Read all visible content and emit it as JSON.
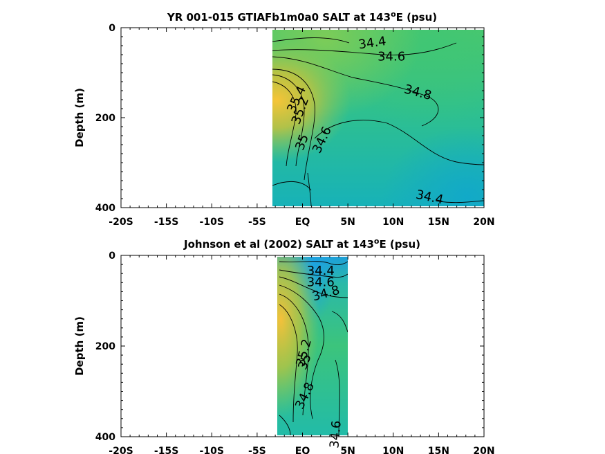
{
  "chart_data": [
    {
      "type": "heatmap",
      "title": {
        "prefix": "YR 001-015 GTIAFb1m0a0 SALT at 143",
        "sup": "o",
        "suffix": "E (psu)"
      },
      "ylabel": "Depth (m)",
      "xlim": [
        -20,
        20
      ],
      "ylim": [
        0,
        400
      ],
      "x_ticks": [
        -20,
        -15,
        -10,
        -5,
        0,
        5,
        10,
        15,
        20
      ],
      "x_tick_labels": [
        "-20S",
        "-15S",
        "-10S",
        "-5S",
        "EQ",
        "5N",
        "10N",
        "15N",
        "20N"
      ],
      "y_ticks": [
        0,
        200,
        400
      ],
      "y_tick_labels": [
        "0",
        "200",
        "400"
      ],
      "data_extent": {
        "lat": [
          -3.2,
          20
        ],
        "depth": [
          5,
          395
        ]
      },
      "contour_labels": [
        {
          "text": "34.4",
          "lat": 7.7,
          "depth": 35,
          "rotate": -8
        },
        {
          "text": "34.6",
          "lat": 9.8,
          "depth": 65,
          "rotate": 0
        },
        {
          "text": "34.8",
          "lat": 12.7,
          "depth": 145,
          "rotate": 15
        },
        {
          "text": "35.4",
          "lat": -0.6,
          "depth": 160,
          "rotate": -65
        },
        {
          "text": "35.2",
          "lat": -0.2,
          "depth": 185,
          "rotate": -70
        },
        {
          "text": "35",
          "lat": 0.0,
          "depth": 255,
          "rotate": -70
        },
        {
          "text": "34.6",
          "lat": 2.2,
          "depth": 250,
          "rotate": -65
        },
        {
          "text": "34.4",
          "lat": 14.0,
          "depth": 378,
          "rotate": 12
        }
      ]
    },
    {
      "type": "heatmap",
      "title": {
        "prefix": "Johnson et al (2002) SALT at 143",
        "sup": "o",
        "suffix": "E (psu)"
      },
      "ylabel": "Depth (m)",
      "xlim": [
        -20,
        20
      ],
      "ylim": [
        0,
        400
      ],
      "x_ticks": [
        -20,
        -15,
        -10,
        -5,
        0,
        5,
        10,
        15,
        20
      ],
      "x_tick_labels": [
        "-20S",
        "-15S",
        "-10S",
        "-5S",
        "EQ",
        "5N",
        "10N",
        "15N",
        "20N"
      ],
      "y_ticks": [
        0,
        200,
        400
      ],
      "y_tick_labels": [
        "0",
        "200",
        "400"
      ],
      "data_extent": {
        "lat": [
          -2.7,
          5.1
        ],
        "depth": [
          5,
          400
        ]
      },
      "contour_labels": [
        {
          "text": "34.4",
          "lat": 2.0,
          "depth": 35,
          "rotate": 0
        },
        {
          "text": "34.6",
          "lat": 2.0,
          "depth": 60,
          "rotate": 0
        },
        {
          "text": "34.8",
          "lat": 2.6,
          "depth": 85,
          "rotate": -15
        },
        {
          "text": "35.2",
          "lat": 0.2,
          "depth": 215,
          "rotate": -75
        },
        {
          "text": "35",
          "lat": 0.3,
          "depth": 235,
          "rotate": -70
        },
        {
          "text": "34.8",
          "lat": 0.3,
          "depth": 310,
          "rotate": -65
        },
        {
          "text": "34.6",
          "lat": 3.7,
          "depth": 395,
          "rotate": -85
        }
      ]
    }
  ]
}
